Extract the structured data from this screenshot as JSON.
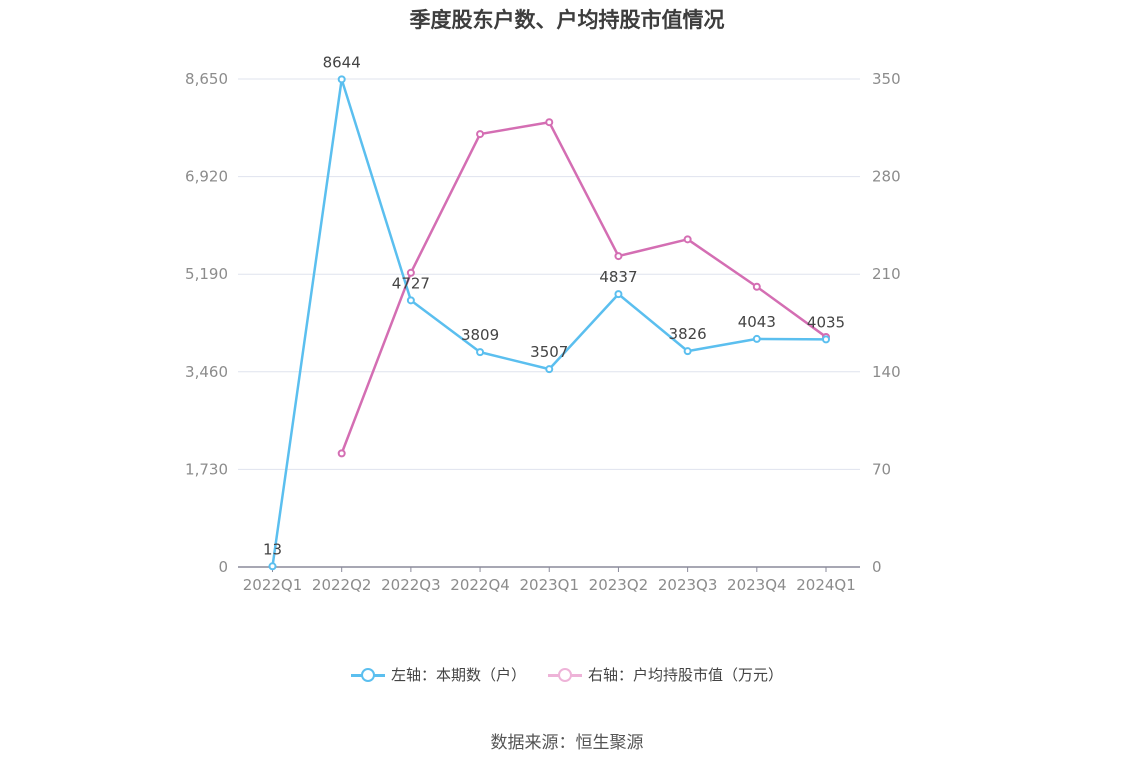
{
  "chart_data": {
    "type": "line",
    "title": "季度股东户数、户均持股市值情况",
    "categories": [
      "2022Q1",
      "2022Q2",
      "2022Q3",
      "2022Q4",
      "2023Q1",
      "2023Q2",
      "2023Q3",
      "2023Q4",
      "2024Q1"
    ],
    "left_axis": {
      "ticks": [
        "0",
        "1,730",
        "3,460",
        "5,190",
        "6,920",
        "8,650"
      ],
      "range": [
        0,
        8650
      ]
    },
    "right_axis": {
      "ticks": [
        "0",
        "70",
        "140",
        "210",
        "280",
        "350"
      ],
      "range": [
        0,
        350
      ]
    },
    "series": [
      {
        "name": "左轴：本期数（户）",
        "axis": "left",
        "color": "#5bbfef",
        "values": [
          13,
          8644,
          4727,
          3809,
          3507,
          4837,
          3826,
          4043,
          4035
        ],
        "labels": [
          "13",
          "8644",
          "4727",
          "3809",
          "3507",
          "4837",
          "3826",
          "4043",
          "4035"
        ]
      },
      {
        "name": "右轴：户均持股市值（万元）",
        "axis": "right",
        "color": "#d46eb3",
        "legend_color": "#eeb3d8",
        "values": [
          null,
          81.5,
          211,
          310.5,
          319,
          223,
          235,
          201,
          165
        ]
      }
    ],
    "grid": true,
    "legend_position": "bottom-center"
  },
  "source": "数据来源：恒生聚源"
}
